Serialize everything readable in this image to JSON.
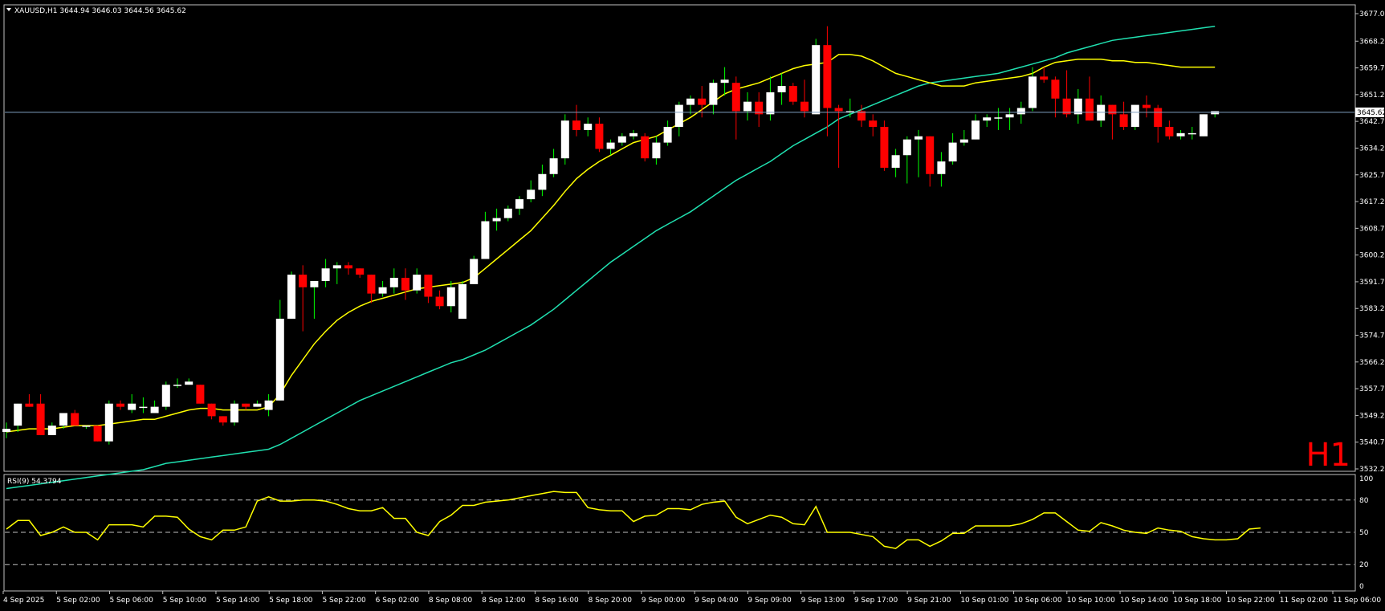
{
  "symbol_header": {
    "text": "XAUUSD,H1  3644.94 3646.03 3644.56 3645.62"
  },
  "timeframe_watermark": "H1",
  "colors": {
    "background": "#000000",
    "grid_frame": "#c0c0c0",
    "bull_candle": "#ffffff",
    "bear_candle": "#ff0000",
    "wick_bull": "#00ff00",
    "wick_bear": "#ff0000",
    "ma_fast": "#ffff00",
    "ma_slow": "#20e0b0",
    "bid_line": "#7f9fbf",
    "rsi_line": "#ffff00",
    "watermark": "#ff0000"
  },
  "chart_data": [
    {
      "type": "candlestick",
      "symbol": "XAUUSD",
      "timeframe": "H1",
      "current_price": 3645.62,
      "price_axis_labels": [
        "3677.00",
        "3668.25",
        "3659.75",
        "3651.25",
        "3642.75",
        "3634.25",
        "3625.75",
        "3617.25",
        "3608.75",
        "3600.25",
        "3591.75",
        "3583.25",
        "3574.75",
        "3566.25",
        "3557.75",
        "3549.25",
        "3540.75",
        "3532.25"
      ],
      "ylim": [
        3532.25,
        3677.0
      ],
      "time_axis_labels": [
        "4 Sep 2025",
        "5 Sep 02:00",
        "5 Sep 06:00",
        "5 Sep 10:00",
        "5 Sep 14:00",
        "5 Sep 18:00",
        "5 Sep 22:00",
        "6 Sep 02:00",
        "8 Sep 08:00",
        "8 Sep 12:00",
        "8 Sep 16:00",
        "8 Sep 20:00",
        "9 Sep 00:00",
        "9 Sep 04:00",
        "9 Sep 09:00",
        "9 Sep 13:00",
        "9 Sep 17:00",
        "9 Sep 21:00",
        "10 Sep 01:00",
        "10 Sep 06:00",
        "10 Sep 10:00",
        "10 Sep 14:00",
        "10 Sep 18:00",
        "10 Sep 22:00",
        "11 Sep 02:00",
        "11 Sep 06:00"
      ],
      "candles": [
        [
          3544,
          3547,
          3542,
          3545
        ],
        [
          3546,
          3553,
          3544,
          3553
        ],
        [
          3553,
          3556,
          3552,
          3552
        ],
        [
          3553,
          3556,
          3543,
          3543
        ],
        [
          3543,
          3547,
          3543,
          3546
        ],
        [
          3546,
          3550,
          3545,
          3550
        ],
        [
          3550,
          3551,
          3546,
          3546
        ],
        [
          3546,
          3546,
          3545,
          3546
        ],
        [
          3546,
          3546,
          3541,
          3541
        ],
        [
          3541,
          3554,
          3540,
          3553
        ],
        [
          3553,
          3554,
          3551,
          3552
        ],
        [
          3551,
          3556,
          3550,
          3553
        ],
        [
          3552,
          3555,
          3550,
          3552
        ],
        [
          3550,
          3554,
          3550,
          3552
        ],
        [
          3552,
          3560,
          3551,
          3559
        ],
        [
          3559,
          3561,
          3558,
          3559
        ],
        [
          3559,
          3561,
          3559,
          3560
        ],
        [
          3559,
          3559,
          3553,
          3553
        ],
        [
          3553,
          3553,
          3548,
          3549
        ],
        [
          3549,
          3549,
          3546,
          3547
        ],
        [
          3547,
          3554,
          3546,
          3553
        ],
        [
          3553,
          3553,
          3551,
          3552
        ],
        [
          3552,
          3554,
          3552,
          3553
        ],
        [
          3551,
          3556,
          3549,
          3554
        ],
        [
          3554,
          3586,
          3554,
          3580
        ],
        [
          3580,
          3595,
          3580,
          3594
        ],
        [
          3594,
          3597,
          3576,
          3590
        ],
        [
          3590,
          3592,
          3580,
          3592
        ],
        [
          3592,
          3599,
          3590,
          3596
        ],
        [
          3596,
          3598,
          3591,
          3597
        ],
        [
          3597,
          3598,
          3594,
          3596
        ],
        [
          3596,
          3596,
          3593,
          3594
        ],
        [
          3594,
          3594,
          3585,
          3588
        ],
        [
          3588,
          3592,
          3587,
          3590
        ],
        [
          3590,
          3596,
          3588,
          3593
        ],
        [
          3593,
          3596,
          3586,
          3589
        ],
        [
          3589,
          3596,
          3588,
          3594
        ],
        [
          3594,
          3594,
          3585,
          3587
        ],
        [
          3587,
          3589,
          3583,
          3584
        ],
        [
          3584,
          3592,
          3582,
          3590
        ],
        [
          3580,
          3592,
          3580,
          3591
        ],
        [
          3591,
          3600,
          3591,
          3599
        ],
        [
          3599,
          3614,
          3599,
          3611
        ],
        [
          3611,
          3615,
          3608,
          3612
        ],
        [
          3612,
          3616,
          3611,
          3615
        ],
        [
          3615,
          3619,
          3613,
          3618
        ],
        [
          3618,
          3624,
          3617,
          3621
        ],
        [
          3621,
          3629,
          3619,
          3626
        ],
        [
          3626,
          3634,
          3625,
          3631
        ],
        [
          3631,
          3645,
          3629,
          3643
        ],
        [
          3643,
          3648,
          3638,
          3640
        ],
        [
          3640,
          3644,
          3638,
          3642
        ],
        [
          3642,
          3644,
          3633,
          3634
        ],
        [
          3634,
          3637,
          3632,
          3636
        ],
        [
          3636,
          3639,
          3635,
          3638
        ],
        [
          3638,
          3640,
          3637,
          3639
        ],
        [
          3638,
          3639,
          3630,
          3631
        ],
        [
          3631,
          3638,
          3629,
          3636
        ],
        [
          3636,
          3643,
          3635,
          3641
        ],
        [
          3641,
          3649,
          3638,
          3648
        ],
        [
          3648,
          3651,
          3645,
          3650
        ],
        [
          3650,
          3654,
          3644,
          3648
        ],
        [
          3648,
          3656,
          3645,
          3655
        ],
        [
          3655,
          3660,
          3651,
          3656
        ],
        [
          3655,
          3657,
          3637,
          3646
        ],
        [
          3646,
          3652,
          3643,
          3649
        ],
        [
          3649,
          3652,
          3641,
          3645
        ],
        [
          3645,
          3657,
          3643,
          3652
        ],
        [
          3652,
          3658,
          3648,
          3654
        ],
        [
          3654,
          3655,
          3648,
          3649
        ],
        [
          3649,
          3656,
          3644,
          3646
        ],
        [
          3645,
          3669,
          3645,
          3667
        ],
        [
          3667,
          3673,
          3638,
          3647
        ],
        [
          3647,
          3648,
          3628,
          3646
        ],
        [
          3646,
          3650,
          3644,
          3646
        ],
        [
          3646,
          3648,
          3641,
          3643
        ],
        [
          3643,
          3645,
          3638,
          3641
        ],
        [
          3641,
          3643,
          3627,
          3628
        ],
        [
          3628,
          3634,
          3625,
          3632
        ],
        [
          3632,
          3638,
          3623,
          3637
        ],
        [
          3637,
          3640,
          3625,
          3638
        ],
        [
          3638,
          3638,
          3622,
          3626
        ],
        [
          3626,
          3633,
          3622,
          3630
        ],
        [
          3630,
          3639,
          3629,
          3636
        ],
        [
          3636,
          3640,
          3635,
          3637
        ],
        [
          3637,
          3645,
          3637,
          3643
        ],
        [
          3643,
          3645,
          3641,
          3644
        ],
        [
          3644,
          3647,
          3640,
          3644
        ],
        [
          3644,
          3647,
          3640,
          3645
        ],
        [
          3645,
          3649,
          3642,
          3647
        ],
        [
          3647,
          3660,
          3646,
          3657
        ],
        [
          3657,
          3660,
          3655,
          3656
        ],
        [
          3656,
          3657,
          3644,
          3650
        ],
        [
          3650,
          3659,
          3644,
          3645
        ],
        [
          3645,
          3653,
          3642,
          3650
        ],
        [
          3650,
          3657,
          3643,
          3643
        ],
        [
          3643,
          3651,
          3641,
          3648
        ],
        [
          3648,
          3648,
          3637,
          3645
        ],
        [
          3645,
          3649,
          3640,
          3641
        ],
        [
          3641,
          3648,
          3640,
          3648
        ],
        [
          3648,
          3651,
          3644,
          3647
        ],
        [
          3647,
          3648,
          3636,
          3641
        ],
        [
          3641,
          3643,
          3637,
          3638
        ],
        [
          3638,
          3640,
          3637,
          3639
        ],
        [
          3639,
          3641,
          3637,
          3639
        ],
        [
          3638,
          3645,
          3638,
          3645
        ],
        [
          3645,
          3646,
          3644,
          3646
        ]
      ],
      "ma_fast": [
        3544,
        3544.5,
        3545,
        3545,
        3545,
        3545.5,
        3546,
        3546,
        3546,
        3546.5,
        3547,
        3547.5,
        3548,
        3548,
        3549,
        3550,
        3551,
        3551.5,
        3551.5,
        3551,
        3551,
        3551,
        3551,
        3552,
        3556,
        3562,
        3567,
        3572,
        3576,
        3579.5,
        3582,
        3584,
        3585.5,
        3586.5,
        3587.5,
        3588.5,
        3589.5,
        3590,
        3590.5,
        3591,
        3591.5,
        3593,
        3596,
        3599,
        3602,
        3605,
        3608,
        3612,
        3616,
        3620.5,
        3624.5,
        3627.5,
        3630,
        3632,
        3634,
        3636,
        3637,
        3638,
        3640,
        3642,
        3644,
        3646.5,
        3649,
        3651.5,
        3653,
        3654,
        3655,
        3656.5,
        3658,
        3659.5,
        3660.5,
        3661,
        3661.5,
        3664,
        3664,
        3663.5,
        3662,
        3660,
        3658,
        3657,
        3656,
        3655,
        3654,
        3654,
        3654,
        3655,
        3655.5,
        3656,
        3656.5,
        3657,
        3658,
        3660,
        3661.5,
        3662,
        3662.5,
        3662.5,
        3662.5,
        3662,
        3662,
        3661.5,
        3661.5,
        3661,
        3660.5,
        3660,
        3660,
        3660,
        3660
      ],
      "ma_slow": [
        3526,
        3526.5,
        3527,
        3527.5,
        3528,
        3528.5,
        3529,
        3529.5,
        3530,
        3530.5,
        3531,
        3531.5,
        3532,
        3533,
        3534,
        3534.5,
        3535,
        3535.5,
        3536,
        3536.5,
        3537,
        3537.5,
        3538,
        3538.5,
        3540,
        3542,
        3544,
        3546,
        3548,
        3550,
        3552,
        3554,
        3555.5,
        3557,
        3558.5,
        3560,
        3561.5,
        3563,
        3564.5,
        3566,
        3567,
        3568.5,
        3570,
        3572,
        3574,
        3576,
        3578,
        3580.5,
        3583,
        3586,
        3589,
        3592,
        3595,
        3598,
        3600.5,
        3603,
        3605.5,
        3608,
        3610,
        3612,
        3614,
        3616.5,
        3619,
        3621.5,
        3624,
        3626,
        3628,
        3630,
        3632.5,
        3635,
        3637,
        3639,
        3641,
        3643.5,
        3645,
        3646.5,
        3648,
        3649.5,
        3651,
        3652.5,
        3654,
        3655,
        3655.5,
        3656,
        3656.5,
        3657,
        3657.5,
        3658,
        3659,
        3660,
        3661,
        3662,
        3663,
        3664.5,
        3665.5,
        3666.5,
        3667.5,
        3668.5,
        3669,
        3669.5,
        3670,
        3670.5,
        3671,
        3671.5,
        3672,
        3672.5,
        3673
      ]
    },
    {
      "type": "line",
      "indicator": "RSI(9)",
      "header_text": "RSI(9) 54.3794",
      "current_value": 54.3794,
      "ylim": [
        0,
        100
      ],
      "axis_labels": [
        "100",
        "80",
        "50",
        "20",
        "0"
      ],
      "levels": [
        80,
        50,
        20
      ],
      "values": [
        53,
        61,
        61,
        47,
        50,
        55,
        50,
        50,
        43,
        57,
        57,
        57,
        55,
        65,
        65,
        64,
        53,
        46,
        43,
        52,
        52,
        55,
        79,
        83,
        79,
        79,
        80,
        80,
        79,
        76,
        72,
        70,
        70,
        73,
        63,
        63,
        50,
        47,
        60,
        66,
        75,
        75,
        78,
        79,
        80,
        82,
        84,
        86,
        88,
        87,
        87,
        73,
        71,
        70,
        70,
        60,
        65,
        66,
        72,
        72,
        71,
        76,
        78,
        79,
        64,
        58,
        62,
        66,
        64,
        58,
        57,
        74,
        50,
        50,
        50,
        48,
        46,
        37,
        35,
        43,
        43,
        37,
        42,
        49,
        49,
        56,
        56,
        56,
        56,
        58,
        62,
        68,
        68,
        60,
        52,
        51,
        59,
        56,
        52,
        50,
        49,
        54,
        52,
        51,
        46,
        44,
        43,
        43,
        44,
        53,
        54
      ]
    }
  ]
}
